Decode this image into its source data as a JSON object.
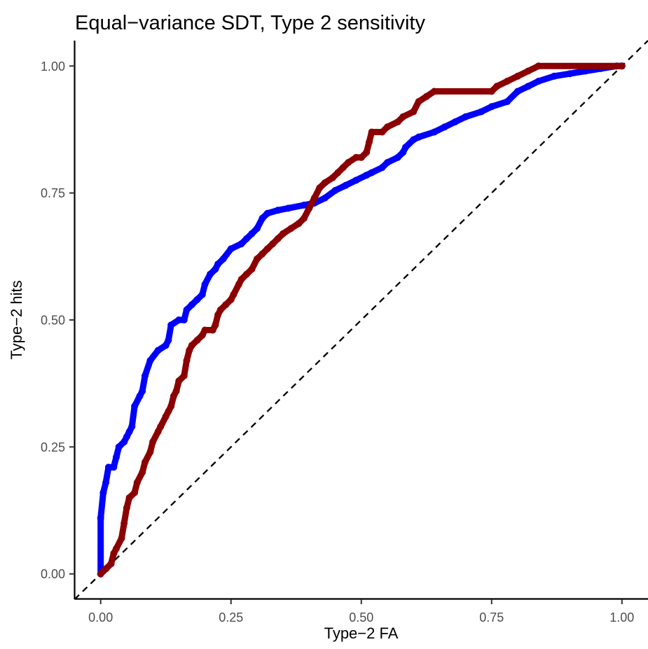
{
  "chart_data": {
    "type": "line",
    "title": "Equal−variance SDT, Type 2 sensitivity",
    "xlabel": "Type−2 FA",
    "ylabel": "Type−2 hits",
    "xlim": [
      -0.05,
      1.05
    ],
    "ylim": [
      -0.05,
      1.05
    ],
    "x_ticks": [
      0,
      0.25,
      0.5,
      0.75,
      1
    ],
    "x_tick_labels": [
      "0.00",
      "0.25",
      "0.50",
      "0.75",
      "1.00"
    ],
    "y_ticks": [
      0,
      0.25,
      0.5,
      0.75,
      1
    ],
    "y_tick_labels": [
      "0.00",
      "0.25",
      "0.50",
      "0.75",
      "1.00"
    ],
    "grid": false,
    "legend": "none",
    "reference_line": {
      "style": "dashed",
      "color": "#000000",
      "from": [
        -0.05,
        -0.05
      ],
      "to": [
        1.05,
        1.05
      ]
    },
    "series": [
      {
        "color": "#0000ff",
        "points": [
          [
            0,
            0
          ],
          [
            0,
            0.11
          ],
          [
            0.005,
            0.16
          ],
          [
            0.01,
            0.18
          ],
          [
            0.015,
            0.21
          ],
          [
            0.025,
            0.21
          ],
          [
            0.03,
            0.23
          ],
          [
            0.035,
            0.25
          ],
          [
            0.045,
            0.26
          ],
          [
            0.05,
            0.27
          ],
          [
            0.055,
            0.28
          ],
          [
            0.06,
            0.29
          ],
          [
            0.065,
            0.33
          ],
          [
            0.075,
            0.35
          ],
          [
            0.08,
            0.36
          ],
          [
            0.085,
            0.39
          ],
          [
            0.095,
            0.42
          ],
          [
            0.11,
            0.44
          ],
          [
            0.125,
            0.45
          ],
          [
            0.13,
            0.46
          ],
          [
            0.135,
            0.49
          ],
          [
            0.15,
            0.5
          ],
          [
            0.16,
            0.5
          ],
          [
            0.165,
            0.52
          ],
          [
            0.175,
            0.53
          ],
          [
            0.185,
            0.54
          ],
          [
            0.195,
            0.55
          ],
          [
            0.2,
            0.57
          ],
          [
            0.21,
            0.59
          ],
          [
            0.22,
            0.6
          ],
          [
            0.225,
            0.61
          ],
          [
            0.235,
            0.62
          ],
          [
            0.25,
            0.64
          ],
          [
            0.27,
            0.65
          ],
          [
            0.28,
            0.66
          ],
          [
            0.29,
            0.67
          ],
          [
            0.3,
            0.68
          ],
          [
            0.31,
            0.7
          ],
          [
            0.32,
            0.71
          ],
          [
            0.34,
            0.716
          ],
          [
            0.36,
            0.72
          ],
          [
            0.39,
            0.726
          ],
          [
            0.41,
            0.73
          ],
          [
            0.43,
            0.74
          ],
          [
            0.45,
            0.755
          ],
          [
            0.47,
            0.765
          ],
          [
            0.49,
            0.775
          ],
          [
            0.51,
            0.785
          ],
          [
            0.52,
            0.79
          ],
          [
            0.54,
            0.8
          ],
          [
            0.55,
            0.81
          ],
          [
            0.57,
            0.82
          ],
          [
            0.58,
            0.83
          ],
          [
            0.585,
            0.84
          ],
          [
            0.6,
            0.855
          ],
          [
            0.61,
            0.86
          ],
          [
            0.64,
            0.87
          ],
          [
            0.66,
            0.88
          ],
          [
            0.68,
            0.89
          ],
          [
            0.7,
            0.9
          ],
          [
            0.73,
            0.91
          ],
          [
            0.75,
            0.92
          ],
          [
            0.78,
            0.93
          ],
          [
            0.8,
            0.95
          ],
          [
            0.82,
            0.96
          ],
          [
            0.84,
            0.97
          ],
          [
            0.87,
            0.98
          ],
          [
            0.9,
            0.985
          ],
          [
            0.93,
            0.99
          ],
          [
            0.96,
            0.995
          ],
          [
            0.99,
            1.0
          ],
          [
            1.0,
            1.0
          ]
        ]
      },
      {
        "color": "#8b0000",
        "points": [
          [
            0,
            0
          ],
          [
            0.01,
            0.01
          ],
          [
            0.02,
            0.02
          ],
          [
            0.025,
            0.04
          ],
          [
            0.03,
            0.05
          ],
          [
            0.04,
            0.07
          ],
          [
            0.045,
            0.1
          ],
          [
            0.05,
            0.13
          ],
          [
            0.055,
            0.15
          ],
          [
            0.065,
            0.16
          ],
          [
            0.07,
            0.18
          ],
          [
            0.08,
            0.2
          ],
          [
            0.085,
            0.22
          ],
          [
            0.095,
            0.24
          ],
          [
            0.1,
            0.26
          ],
          [
            0.11,
            0.28
          ],
          [
            0.115,
            0.29
          ],
          [
            0.125,
            0.31
          ],
          [
            0.13,
            0.32
          ],
          [
            0.135,
            0.33
          ],
          [
            0.14,
            0.35
          ],
          [
            0.145,
            0.36
          ],
          [
            0.15,
            0.38
          ],
          [
            0.16,
            0.39
          ],
          [
            0.165,
            0.42
          ],
          [
            0.17,
            0.44
          ],
          [
            0.175,
            0.45
          ],
          [
            0.185,
            0.46
          ],
          [
            0.195,
            0.47
          ],
          [
            0.2,
            0.48
          ],
          [
            0.215,
            0.48
          ],
          [
            0.22,
            0.49
          ],
          [
            0.225,
            0.51
          ],
          [
            0.23,
            0.52
          ],
          [
            0.24,
            0.53
          ],
          [
            0.25,
            0.54
          ],
          [
            0.255,
            0.55
          ],
          [
            0.265,
            0.57
          ],
          [
            0.27,
            0.58
          ],
          [
            0.28,
            0.59
          ],
          [
            0.29,
            0.6
          ],
          [
            0.3,
            0.62
          ],
          [
            0.31,
            0.63
          ],
          [
            0.32,
            0.64
          ],
          [
            0.33,
            0.65
          ],
          [
            0.34,
            0.66
          ],
          [
            0.35,
            0.67
          ],
          [
            0.365,
            0.68
          ],
          [
            0.38,
            0.69
          ],
          [
            0.39,
            0.7
          ],
          [
            0.4,
            0.72
          ],
          [
            0.41,
            0.74
          ],
          [
            0.42,
            0.76
          ],
          [
            0.43,
            0.77
          ],
          [
            0.445,
            0.78
          ],
          [
            0.455,
            0.79
          ],
          [
            0.465,
            0.8
          ],
          [
            0.475,
            0.81
          ],
          [
            0.49,
            0.82
          ],
          [
            0.5,
            0.82
          ],
          [
            0.51,
            0.83
          ],
          [
            0.515,
            0.85
          ],
          [
            0.52,
            0.87
          ],
          [
            0.54,
            0.87
          ],
          [
            0.55,
            0.88
          ],
          [
            0.57,
            0.89
          ],
          [
            0.58,
            0.9
          ],
          [
            0.6,
            0.91
          ],
          [
            0.61,
            0.93
          ],
          [
            0.625,
            0.94
          ],
          [
            0.64,
            0.95
          ],
          [
            0.75,
            0.95
          ],
          [
            0.76,
            0.96
          ],
          [
            0.78,
            0.97
          ],
          [
            0.8,
            0.98
          ],
          [
            0.82,
            0.99
          ],
          [
            0.84,
            1.0
          ],
          [
            1.0,
            1.0
          ]
        ]
      }
    ]
  }
}
